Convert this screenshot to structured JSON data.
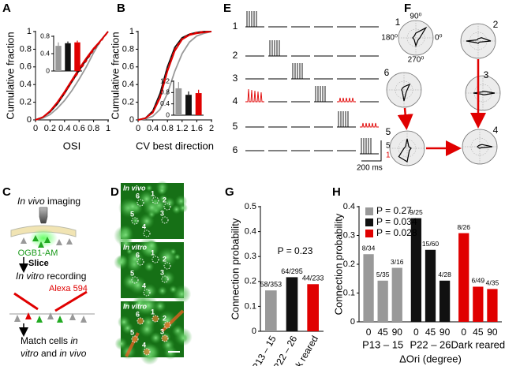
{
  "panel_labels": [
    "A",
    "B",
    "C",
    "D",
    "E",
    "F",
    "G",
    "H"
  ],
  "chart_data": [
    {
      "type": "line",
      "xlabel": "OSI",
      "ylabel": "Cumulative fraction",
      "x": [
        0,
        0.1,
        0.2,
        0.3,
        0.4,
        0.5,
        0.6,
        0.7,
        0.8,
        0.9,
        1
      ],
      "xlim": [
        0,
        1
      ],
      "xticks": [
        0,
        0.2,
        0.4,
        0.6,
        0.8,
        1
      ],
      "ylim": [
        0,
        1
      ],
      "yticks": [
        0,
        0.2,
        0.4,
        0.6,
        0.8,
        1
      ],
      "series": [
        {
          "color": "#999999",
          "values": [
            0,
            0.02,
            0.06,
            0.13,
            0.22,
            0.33,
            0.46,
            0.6,
            0.76,
            0.9,
            1
          ]
        },
        {
          "color": "#111111",
          "values": [
            0,
            0.03,
            0.09,
            0.18,
            0.3,
            0.43,
            0.56,
            0.68,
            0.8,
            0.9,
            1
          ]
        },
        {
          "color": "#e00000",
          "values": [
            0,
            0.03,
            0.1,
            0.2,
            0.32,
            0.45,
            0.58,
            0.7,
            0.81,
            0.9,
            1
          ]
        },
        {
          "color": "#e00000",
          "dash": true,
          "values": [
            0,
            0.03,
            0.09,
            0.19,
            0.3,
            0.43,
            0.55,
            0.67,
            0.79,
            0.89,
            1
          ]
        }
      ]
    },
    {
      "type": "bar",
      "values": [
        0.58,
        0.64,
        0.66
      ],
      "errors": [
        0.08,
        0.04,
        0.04
      ],
      "colors": [
        "#999999",
        "#111111",
        "#e00000"
      ],
      "ylim": [
        0,
        0.8
      ],
      "yticks": [
        0,
        0.4,
        0.8
      ]
    },
    {
      "type": "line",
      "xlabel": "CV best direction",
      "ylabel": "Cumulative fraction",
      "x": [
        0,
        0.2,
        0.4,
        0.6,
        0.8,
        1,
        1.2,
        1.4,
        1.6,
        1.8,
        2
      ],
      "xlim": [
        0,
        2
      ],
      "xticks": [
        0,
        0.4,
        0.8,
        1.2,
        1.6,
        2
      ],
      "ylim": [
        0,
        1
      ],
      "yticks": [
        0,
        0.2,
        0.4,
        0.6,
        0.8,
        1
      ],
      "series": [
        {
          "color": "#999999",
          "values": [
            0,
            0.01,
            0.04,
            0.12,
            0.3,
            0.55,
            0.75,
            0.88,
            0.95,
            0.98,
            1
          ]
        },
        {
          "color": "#111111",
          "values": [
            0,
            0.02,
            0.1,
            0.3,
            0.6,
            0.82,
            0.93,
            0.97,
            0.99,
            1,
            1
          ]
        },
        {
          "color": "#e00000",
          "values": [
            0,
            0.02,
            0.08,
            0.25,
            0.55,
            0.78,
            0.91,
            0.96,
            0.98,
            0.99,
            1
          ]
        },
        {
          "color": "#e00000",
          "dash": true,
          "values": [
            0,
            0.02,
            0.09,
            0.27,
            0.57,
            0.8,
            0.92,
            0.97,
            0.99,
            1,
            1
          ]
        }
      ]
    },
    {
      "type": "bar",
      "values": [
        0.95,
        0.72,
        0.78
      ],
      "errors": [
        0.22,
        0.12,
        0.12
      ],
      "colors": [
        "#999999",
        "#111111",
        "#e00000"
      ],
      "ylim": [
        0,
        1.2
      ],
      "yticks": [
        0,
        0.4,
        0.8,
        1.2
      ]
    },
    {
      "type": "bar",
      "ylabel": "Connection probability",
      "annotation": "P = 0.23",
      "categories": [
        "P13 – 15",
        "P22 – 26",
        "Dark reared"
      ],
      "values": [
        0.164,
        0.217,
        0.189
      ],
      "value_labels": [
        "58/353",
        "64/295",
        "44/233"
      ],
      "colors": [
        "#999999",
        "#111111",
        "#e00000"
      ],
      "ylim": [
        0,
        0.5
      ],
      "yticks": [
        0,
        0.1,
        0.2,
        0.3,
        0.4,
        0.5
      ]
    },
    {
      "type": "grouped_bar",
      "ylabel": "Connection probability",
      "xlabel": "ΔOri (degree)",
      "categories": [
        "0",
        "45",
        "90"
      ],
      "groups": [
        "P13 – 15",
        "P22 – 26",
        "Dark reared"
      ],
      "legend": "upper left",
      "series": [
        {
          "name": "P = 0.27",
          "color": "#999999",
          "values": [
            0.235,
            0.143,
            0.1875
          ],
          "value_labels": [
            "8/34",
            "5/35",
            "3/16"
          ]
        },
        {
          "name": "P = 0.034",
          "color": "#111111",
          "values": [
            0.36,
            0.25,
            0.143
          ],
          "value_labels": [
            "9/25",
            "15/60",
            "4/28"
          ]
        },
        {
          "name": "P = 0.028",
          "color": "#e00000",
          "values": [
            0.308,
            0.122,
            0.114
          ],
          "value_labels": [
            "8/26",
            "6/49",
            "4/35"
          ]
        }
      ],
      "ylim": [
        0,
        0.4
      ],
      "yticks": [
        0,
        0.1,
        0.2,
        0.3,
        0.4
      ]
    }
  ],
  "panel_c": {
    "step1": [
      "In vivo",
      " imaging"
    ],
    "dye1": "OGB1-AM",
    "slice": "Slice",
    "step2": [
      "In vitro",
      " recording"
    ],
    "dye2": "Alexa 594",
    "step3_line1": [
      "Match cells ",
      "in"
    ],
    "step3_line2": [
      "vitro",
      " and ",
      "in vivo"
    ]
  },
  "panel_d": {
    "labels": [
      "In vivo",
      "In vitro",
      "In vitro"
    ],
    "cells": [
      "1",
      "2",
      "3",
      "4",
      "5",
      "6"
    ]
  },
  "panel_e": {
    "rows": [
      "1",
      "2",
      "3",
      "4",
      "5",
      "6"
    ],
    "scale": [
      "50 mV",
      "1 mV",
      "200 ms"
    ]
  },
  "panel_f": {
    "plots": [
      "1",
      "2",
      "3",
      "4",
      "5",
      "6"
    ],
    "angles": [
      "90⁰",
      "180⁰",
      "0⁰",
      "270⁰"
    ]
  }
}
